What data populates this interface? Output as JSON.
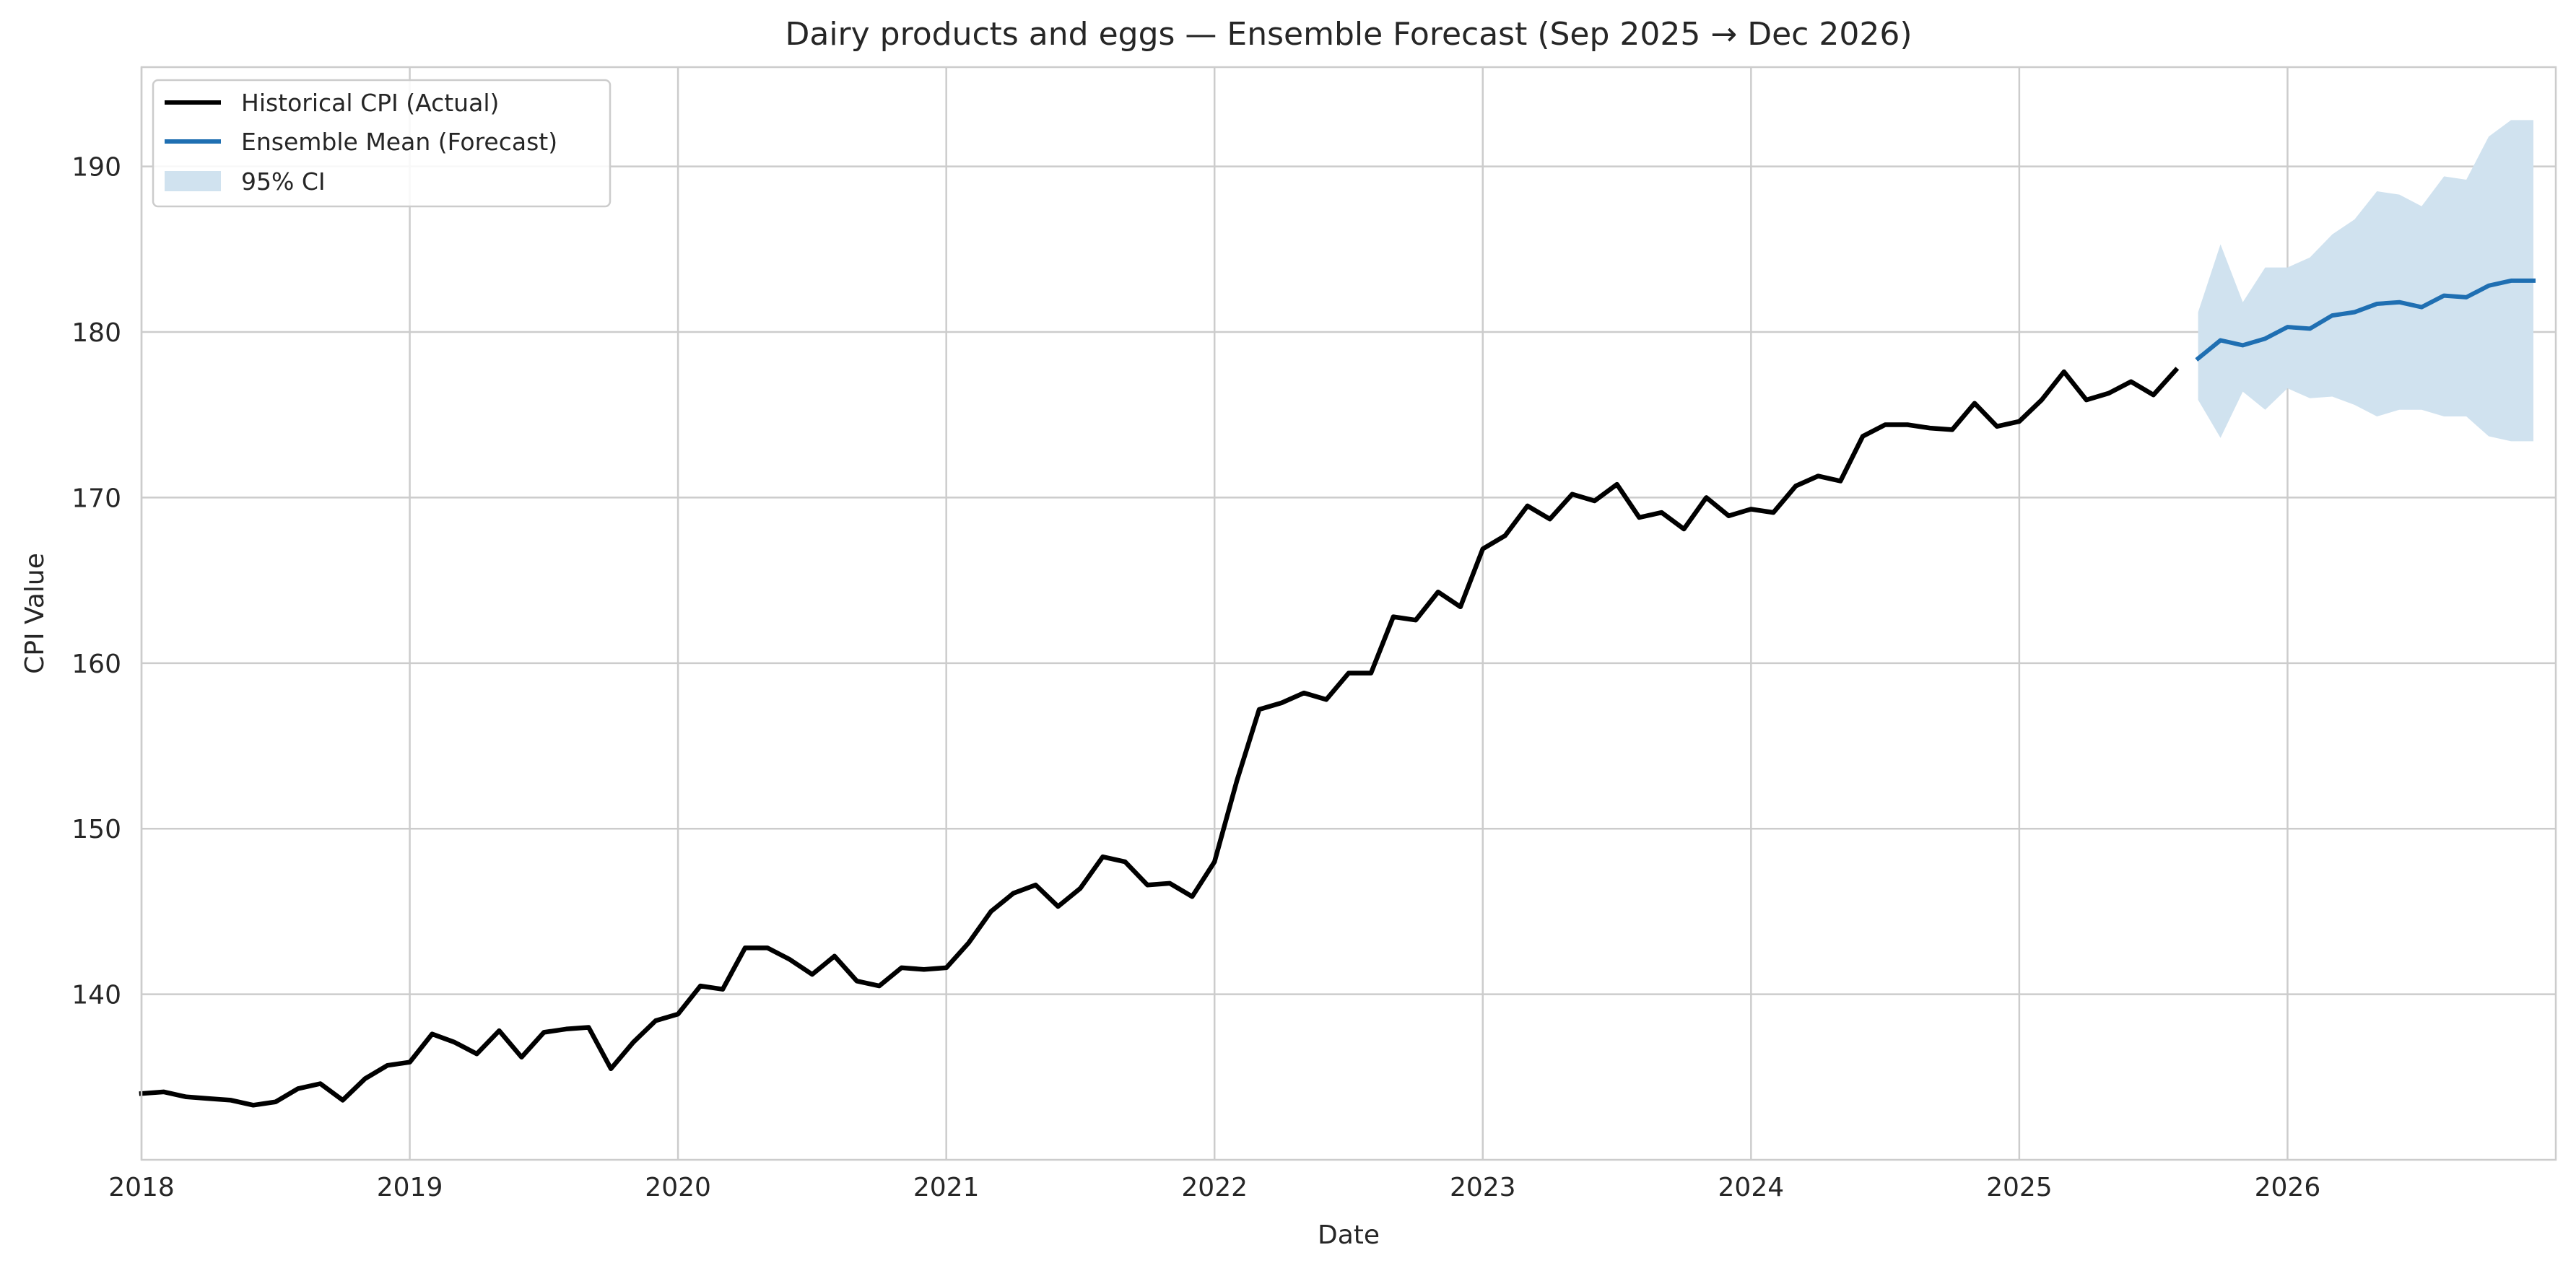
{
  "chart_data": {
    "type": "line",
    "title": "Dairy products and eggs — Ensemble Forecast (Sep 2025 → Dec 2026)",
    "xlabel": "Date",
    "ylabel": "CPI Value",
    "xlim": [
      "2018-01",
      "2027-01"
    ],
    "ylim": [
      130,
      196
    ],
    "grid": true,
    "legend_position": "upper-left",
    "x_ticks": [
      "2018",
      "2019",
      "2020",
      "2021",
      "2022",
      "2023",
      "2024",
      "2025",
      "2026"
    ],
    "y_ticks": [
      140,
      150,
      160,
      170,
      180,
      190
    ],
    "series": [
      {
        "name": "Historical CPI (Actual)",
        "color": "#000000",
        "x": [
          "2018-01",
          "2018-02",
          "2018-03",
          "2018-04",
          "2018-05",
          "2018-06",
          "2018-07",
          "2018-08",
          "2018-09",
          "2018-10",
          "2018-11",
          "2018-12",
          "2019-01",
          "2019-02",
          "2019-03",
          "2019-04",
          "2019-05",
          "2019-06",
          "2019-07",
          "2019-08",
          "2019-09",
          "2019-10",
          "2019-11",
          "2019-12",
          "2020-01",
          "2020-02",
          "2020-03",
          "2020-04",
          "2020-05",
          "2020-06",
          "2020-07",
          "2020-08",
          "2020-09",
          "2020-10",
          "2020-11",
          "2020-12",
          "2021-01",
          "2021-02",
          "2021-03",
          "2021-04",
          "2021-05",
          "2021-06",
          "2021-07",
          "2021-08",
          "2021-09",
          "2021-10",
          "2021-11",
          "2021-12",
          "2022-01",
          "2022-02",
          "2022-03",
          "2022-04",
          "2022-05",
          "2022-06",
          "2022-07",
          "2022-08",
          "2022-09",
          "2022-10",
          "2022-11",
          "2022-12",
          "2023-01",
          "2023-02",
          "2023-03",
          "2023-04",
          "2023-05",
          "2023-06",
          "2023-07",
          "2023-08",
          "2023-09",
          "2023-10",
          "2023-11",
          "2023-12",
          "2024-01",
          "2024-02",
          "2024-03",
          "2024-04",
          "2024-05",
          "2024-06",
          "2024-07",
          "2024-08",
          "2024-09",
          "2024-10",
          "2024-11",
          "2024-12",
          "2025-01",
          "2025-02",
          "2025-03",
          "2025-04",
          "2025-05",
          "2025-06",
          "2025-07",
          "2025-08"
        ],
        "values": [
          134.0,
          134.1,
          133.8,
          133.7,
          133.6,
          133.3,
          133.5,
          134.3,
          134.6,
          133.6,
          134.9,
          135.7,
          135.9,
          137.6,
          137.1,
          136.4,
          137.8,
          136.2,
          137.7,
          137.9,
          138.0,
          135.5,
          137.1,
          138.4,
          138.8,
          140.5,
          140.3,
          142.8,
          142.8,
          142.1,
          141.2,
          142.3,
          140.8,
          140.5,
          141.6,
          141.5,
          141.6,
          143.1,
          145.0,
          146.1,
          146.6,
          145.3,
          146.4,
          148.3,
          148.0,
          146.6,
          146.7,
          145.9,
          148.0,
          152.9,
          157.2,
          157.6,
          158.2,
          157.8,
          159.4,
          159.4,
          162.8,
          162.6,
          164.3,
          163.4,
          166.9,
          167.7,
          169.5,
          168.7,
          170.2,
          169.8,
          170.8,
          168.8,
          169.1,
          168.1,
          170.0,
          168.9,
          169.3,
          169.1,
          170.7,
          171.3,
          171.0,
          173.7,
          174.4,
          174.4,
          174.2,
          174.1,
          175.7,
          174.3,
          174.6,
          175.9,
          177.6,
          175.9,
          176.3,
          177.0,
          176.2,
          177.7
        ]
      },
      {
        "name": "Ensemble Mean (Forecast)",
        "color": "#1f6fb2",
        "x": [
          "2025-09",
          "2025-10",
          "2025-11",
          "2025-12",
          "2026-01",
          "2026-02",
          "2026-03",
          "2026-04",
          "2026-05",
          "2026-06",
          "2026-07",
          "2026-08",
          "2026-09",
          "2026-10",
          "2026-11",
          "2026-12"
        ],
        "values": [
          178.4,
          179.5,
          179.2,
          179.6,
          180.3,
          180.2,
          181.0,
          181.2,
          181.7,
          181.8,
          181.5,
          182.2,
          182.1,
          182.8,
          183.1,
          183.1
        ]
      }
    ],
    "confidence_band": {
      "name": "95% CI",
      "color": "#d0e2ef",
      "x": [
        "2025-09",
        "2025-10",
        "2025-11",
        "2025-12",
        "2026-01",
        "2026-02",
        "2026-03",
        "2026-04",
        "2026-05",
        "2026-06",
        "2026-07",
        "2026-08",
        "2026-09",
        "2026-10",
        "2026-11",
        "2026-12"
      ],
      "lower": [
        175.9,
        173.6,
        176.4,
        175.3,
        176.6,
        176.0,
        176.1,
        175.6,
        174.9,
        175.3,
        175.3,
        174.9,
        174.9,
        173.7,
        173.4,
        173.4
      ],
      "upper": [
        181.2,
        185.3,
        181.8,
        183.9,
        183.9,
        184.5,
        185.9,
        186.8,
        188.5,
        188.3,
        187.6,
        189.4,
        189.2,
        191.8,
        192.8,
        192.8
      ]
    }
  }
}
